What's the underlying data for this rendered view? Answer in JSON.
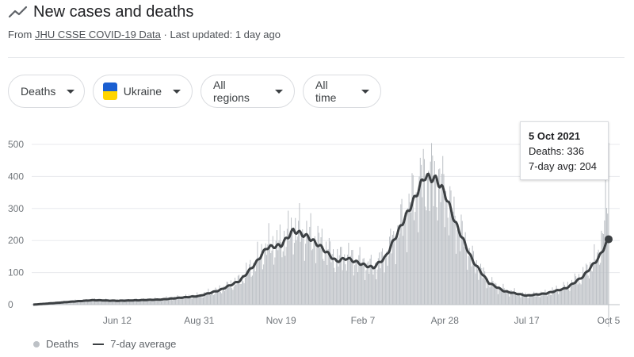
{
  "header": {
    "title": "New cases and deaths",
    "source_prefix": "From ",
    "source_link": "JHU CSSE COVID-19 Data",
    "updated": " · Last updated: 1 day ago"
  },
  "controls": {
    "metric": "Deaths",
    "country": "Ukraine",
    "regions": "All regions",
    "time": "All time"
  },
  "colors": {
    "bars": "#bdc1c6",
    "avg_line": "#3c4043",
    "flag_blue": "#1a5fd1",
    "flag_yellow": "#ffd500"
  },
  "tooltip": {
    "date": "5 Oct 2021",
    "deaths": "Deaths: 336",
    "avg": "7-day avg: 204"
  },
  "legend": {
    "bars": "Deaths",
    "line": "7-day average"
  },
  "chart_data": {
    "type": "bar",
    "title": "",
    "xlabel": "",
    "ylabel": "",
    "ylim": [
      0,
      500
    ],
    "y_ticks": [
      0,
      100,
      200,
      300,
      400,
      500
    ],
    "x_ticks": [
      "Jun 12",
      "Aug 31",
      "Nov 19",
      "Feb 7",
      "Apr 28",
      "Jul 17",
      "Oct 5"
    ],
    "x_range": [
      "2020-03-22",
      "2021-10-05"
    ],
    "grid": true,
    "legend_position": "bottom-left",
    "series": [
      {
        "name": "Deaths",
        "kind": "bar",
        "points": [
          [
            "2020-03-22",
            0
          ],
          [
            "2020-04-12",
            5
          ],
          [
            "2020-05-01",
            12
          ],
          [
            "2020-05-20",
            15
          ],
          [
            "2020-06-12",
            13
          ],
          [
            "2020-07-05",
            15
          ],
          [
            "2020-07-25",
            17
          ],
          [
            "2020-08-31",
            28
          ],
          [
            "2020-09-20",
            45
          ],
          [
            "2020-10-10",
            75
          ],
          [
            "2020-10-25",
            130
          ],
          [
            "2020-11-05",
            180
          ],
          [
            "2020-11-19",
            190
          ],
          [
            "2020-12-01",
            235
          ],
          [
            "2020-12-15",
            215
          ],
          [
            "2020-12-28",
            190
          ],
          [
            "2021-01-12",
            140
          ],
          [
            "2021-01-22",
            150
          ],
          [
            "2021-02-07",
            130
          ],
          [
            "2021-02-17",
            115
          ],
          [
            "2021-03-01",
            150
          ],
          [
            "2021-03-15",
            240
          ],
          [
            "2021-03-30",
            340
          ],
          [
            "2021-04-08",
            400
          ],
          [
            "2021-04-20",
            390
          ],
          [
            "2021-04-28",
            350
          ],
          [
            "2021-05-08",
            260
          ],
          [
            "2021-05-25",
            140
          ],
          [
            "2021-06-10",
            70
          ],
          [
            "2021-06-25",
            45
          ],
          [
            "2021-07-17",
            28
          ],
          [
            "2021-08-05",
            35
          ],
          [
            "2021-08-25",
            55
          ],
          [
            "2021-09-10",
            90
          ],
          [
            "2021-09-25",
            150
          ],
          [
            "2021-10-05",
            336
          ]
        ]
      },
      {
        "name": "7-day average",
        "kind": "line",
        "points": [
          [
            "2020-03-22",
            0
          ],
          [
            "2020-04-12",
            5
          ],
          [
            "2020-05-01",
            10
          ],
          [
            "2020-05-20",
            14
          ],
          [
            "2020-06-12",
            12
          ],
          [
            "2020-07-05",
            14
          ],
          [
            "2020-07-25",
            16
          ],
          [
            "2020-08-31",
            27
          ],
          [
            "2020-09-20",
            45
          ],
          [
            "2020-10-10",
            75
          ],
          [
            "2020-10-25",
            128
          ],
          [
            "2020-11-05",
            178
          ],
          [
            "2020-11-19",
            185
          ],
          [
            "2020-12-01",
            232
          ],
          [
            "2020-12-15",
            212
          ],
          [
            "2020-12-28",
            180
          ],
          [
            "2021-01-12",
            135
          ],
          [
            "2021-01-22",
            145
          ],
          [
            "2021-02-07",
            125
          ],
          [
            "2021-02-17",
            115
          ],
          [
            "2021-03-01",
            148
          ],
          [
            "2021-03-15",
            238
          ],
          [
            "2021-03-30",
            335
          ],
          [
            "2021-04-08",
            400
          ],
          [
            "2021-04-20",
            390
          ],
          [
            "2021-04-28",
            348
          ],
          [
            "2021-05-08",
            258
          ],
          [
            "2021-05-25",
            138
          ],
          [
            "2021-06-10",
            68
          ],
          [
            "2021-06-25",
            42
          ],
          [
            "2021-07-17",
            28
          ],
          [
            "2021-08-05",
            35
          ],
          [
            "2021-08-25",
            52
          ],
          [
            "2021-09-10",
            88
          ],
          [
            "2021-09-25",
            145
          ],
          [
            "2021-10-05",
            204
          ]
        ]
      }
    ],
    "highlight": {
      "date": "2021-10-05",
      "deaths": 336,
      "avg": 204
    }
  }
}
